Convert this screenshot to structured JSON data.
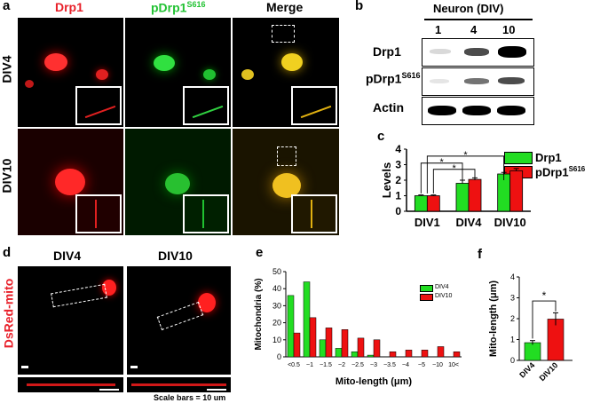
{
  "panel_a": {
    "label": "a",
    "columns": [
      "Drp1",
      "pDrp1",
      "Merge"
    ],
    "column_sup": "S616",
    "rows": [
      "DIV4",
      "DIV10"
    ],
    "colors": {
      "drp1": "#e8202a",
      "pdrp1": "#22c233",
      "merge": "#e0b010"
    }
  },
  "panel_b": {
    "label": "b",
    "header": "Neuron (DIV)",
    "lanes": [
      "1",
      "4",
      "10"
    ],
    "rows": [
      {
        "name": "Drp1",
        "sup": "",
        "band_intensity": [
          0.15,
          0.7,
          1.0
        ]
      },
      {
        "name": "pDrp1",
        "sup": "S616",
        "band_intensity": [
          0.1,
          0.55,
          0.7
        ]
      },
      {
        "name": "Actin",
        "sup": "",
        "band_intensity": [
          1.0,
          1.0,
          1.0
        ]
      }
    ]
  },
  "panel_c": {
    "label": "c",
    "ylabel": "Levels",
    "legend": [
      {
        "name": "Drp1",
        "sup": "",
        "color": "#22dd22"
      },
      {
        "name": "pDrp1",
        "sup": "S616",
        "color": "#ee1111"
      }
    ],
    "sig_marks": [
      "*",
      "*",
      "*"
    ]
  },
  "panel_d": {
    "label": "d",
    "side_label": "DsRed-mito",
    "columns": [
      "DIV4",
      "DIV10"
    ],
    "scale_note": "Scale bars = 10 um"
  },
  "panel_e": {
    "label": "e",
    "legend": [
      "DIV4",
      "DIV10"
    ]
  },
  "panel_f": {
    "label": "f",
    "sig_mark": "*"
  },
  "chart_data": [
    {
      "type": "bar",
      "ylabel": "Levels",
      "categories": [
        "DIV1",
        "DIV4",
        "DIV10"
      ],
      "ylim": [
        0,
        4
      ],
      "yticks": [
        "0",
        "1",
        "2",
        "3",
        "4"
      ],
      "series": [
        {
          "name": "Drp1",
          "color": "#22dd22",
          "values": [
            1.0,
            1.8,
            2.4
          ],
          "errors": [
            0.05,
            0.2,
            0.1
          ]
        },
        {
          "name": "pDrp1",
          "color": "#ee1111",
          "values": [
            1.0,
            2.05,
            2.6
          ],
          "errors": [
            0.05,
            0.1,
            0.15
          ]
        }
      ]
    },
    {
      "type": "bar",
      "xlabel": "Mito-length (μm)",
      "ylabel": "Mitochondria (%)",
      "categories": [
        "<0.5",
        "~1",
        "~1.5",
        "~2",
        "~2.5",
        "~3",
        "~3.5",
        "~4",
        "~5",
        "~10",
        "10<"
      ],
      "ylim": [
        0,
        50
      ],
      "yticks": [
        "0",
        "10",
        "20",
        "30",
        "40",
        "50"
      ],
      "series": [
        {
          "name": "DIV4",
          "color": "#22dd22",
          "values": [
            36,
            44,
            10,
            5,
            3,
            1,
            0,
            0,
            0,
            0,
            0
          ]
        },
        {
          "name": "DIV10",
          "color": "#ee1111",
          "values": [
            14,
            23,
            17,
            16,
            11,
            10,
            3,
            4,
            4,
            6,
            3
          ]
        }
      ]
    },
    {
      "type": "bar",
      "ylabel": "Mito-length (μm)",
      "categories": [
        "DIV4",
        "DIV10"
      ],
      "ylim": [
        0,
        4
      ],
      "yticks": [
        "0",
        "1",
        "2",
        "3",
        "4"
      ],
      "series": [
        {
          "name": "",
          "values": [
            0.85,
            1.98
          ],
          "errors": [
            0.1,
            0.3
          ],
          "colors": [
            "#22dd22",
            "#ee1111"
          ]
        }
      ]
    }
  ]
}
